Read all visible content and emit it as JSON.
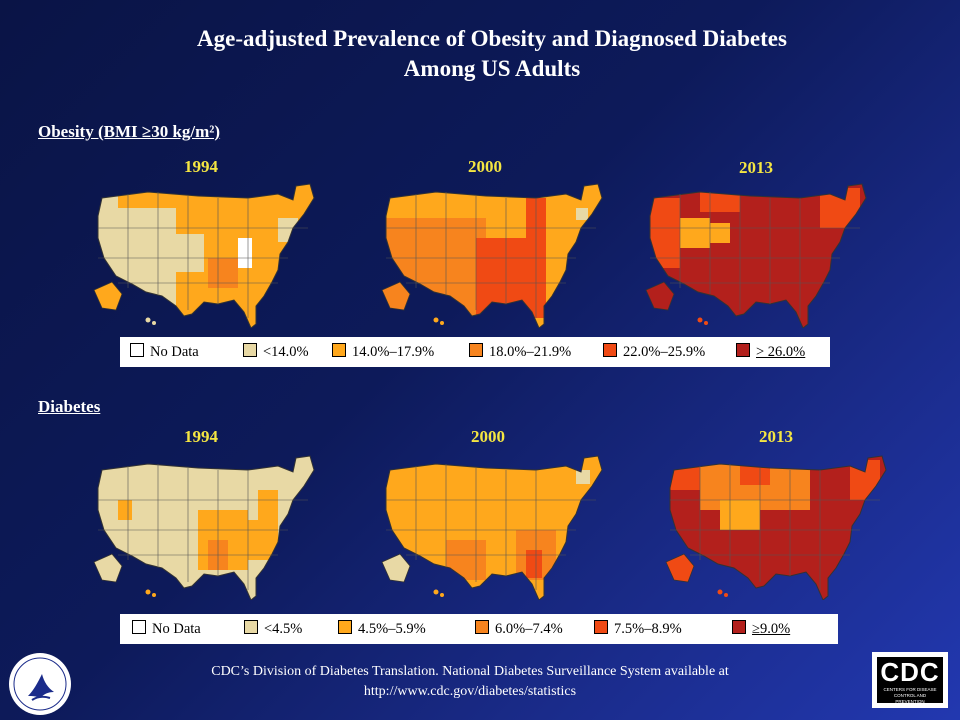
{
  "title_line1": "Age-adjusted Prevalence of  Obesity and Diagnosed Diabetes",
  "title_line2": "Among US Adults",
  "obesity": {
    "label": "Obesity (BMI  ≥30 kg/m²)",
    "years": [
      "1994",
      "2000",
      "2013"
    ],
    "legend": [
      "No Data",
      "<14.0%",
      "14.0%–17.9%",
      "18.0%–21.9%",
      "22.0%–25.9%",
      "> 26.0%"
    ]
  },
  "diabetes": {
    "label": "Diabetes",
    "years": [
      "1994",
      "2000",
      "2013"
    ],
    "legend": [
      "No Data",
      "<4.5%",
      "4.5%–5.9%",
      "6.0%–7.4%",
      "7.5%–8.9%",
      "≥9.0%"
    ]
  },
  "colors": {
    "no_data": "#ffffff",
    "level1": "#e8d9a5",
    "level2": "#ffa81c",
    "level3": "#f7841e",
    "level4": "#f04a14",
    "level5": "#b3201c"
  },
  "footer_line1": "CDC’s Division of Diabetes Translation. National Diabetes Surveillance System available at",
  "footer_line2": "http://www.cdc.gov/diabetes/statistics",
  "cdc_logo_text": "CDC",
  "cdc_logo_sub": "CENTERS FOR DISEASE CONTROL AND PREVENTION"
}
